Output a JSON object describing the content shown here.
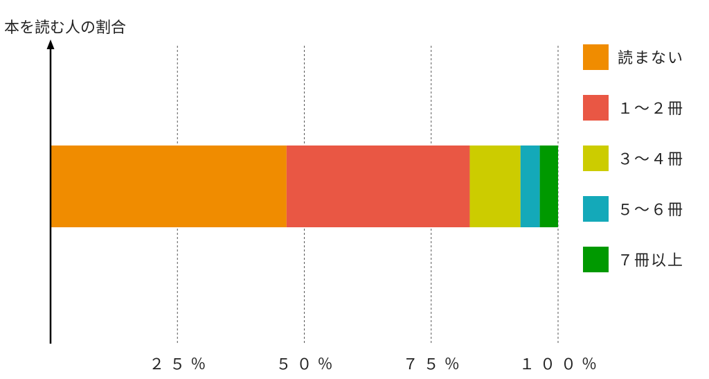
{
  "chart_data": {
    "type": "bar",
    "orientation": "horizontal",
    "stacked": true,
    "normalized_percent": true,
    "ylabel": "本を読む人の割合",
    "xlim": [
      0,
      100
    ],
    "x_ticks": [
      {
        "value": 25,
        "label": "２５％"
      },
      {
        "value": 50,
        "label": "５０％"
      },
      {
        "value": 75,
        "label": "７５％"
      },
      {
        "value": 100,
        "label": "１００％"
      }
    ],
    "grid": "vertical-dashed",
    "legend_position": "right",
    "series": [
      {
        "name": "読まない",
        "value": 46.5,
        "color": "#F08C00"
      },
      {
        "name": "１～２冊",
        "value": 36.1,
        "color": "#E95744"
      },
      {
        "name": "３～４冊",
        "value": 10.0,
        "color": "#CCCC00"
      },
      {
        "name": "５～６冊",
        "value": 3.8,
        "color": "#14A9B9"
      },
      {
        "name": "７冊以上",
        "value": 3.6,
        "color": "#009900"
      }
    ]
  }
}
